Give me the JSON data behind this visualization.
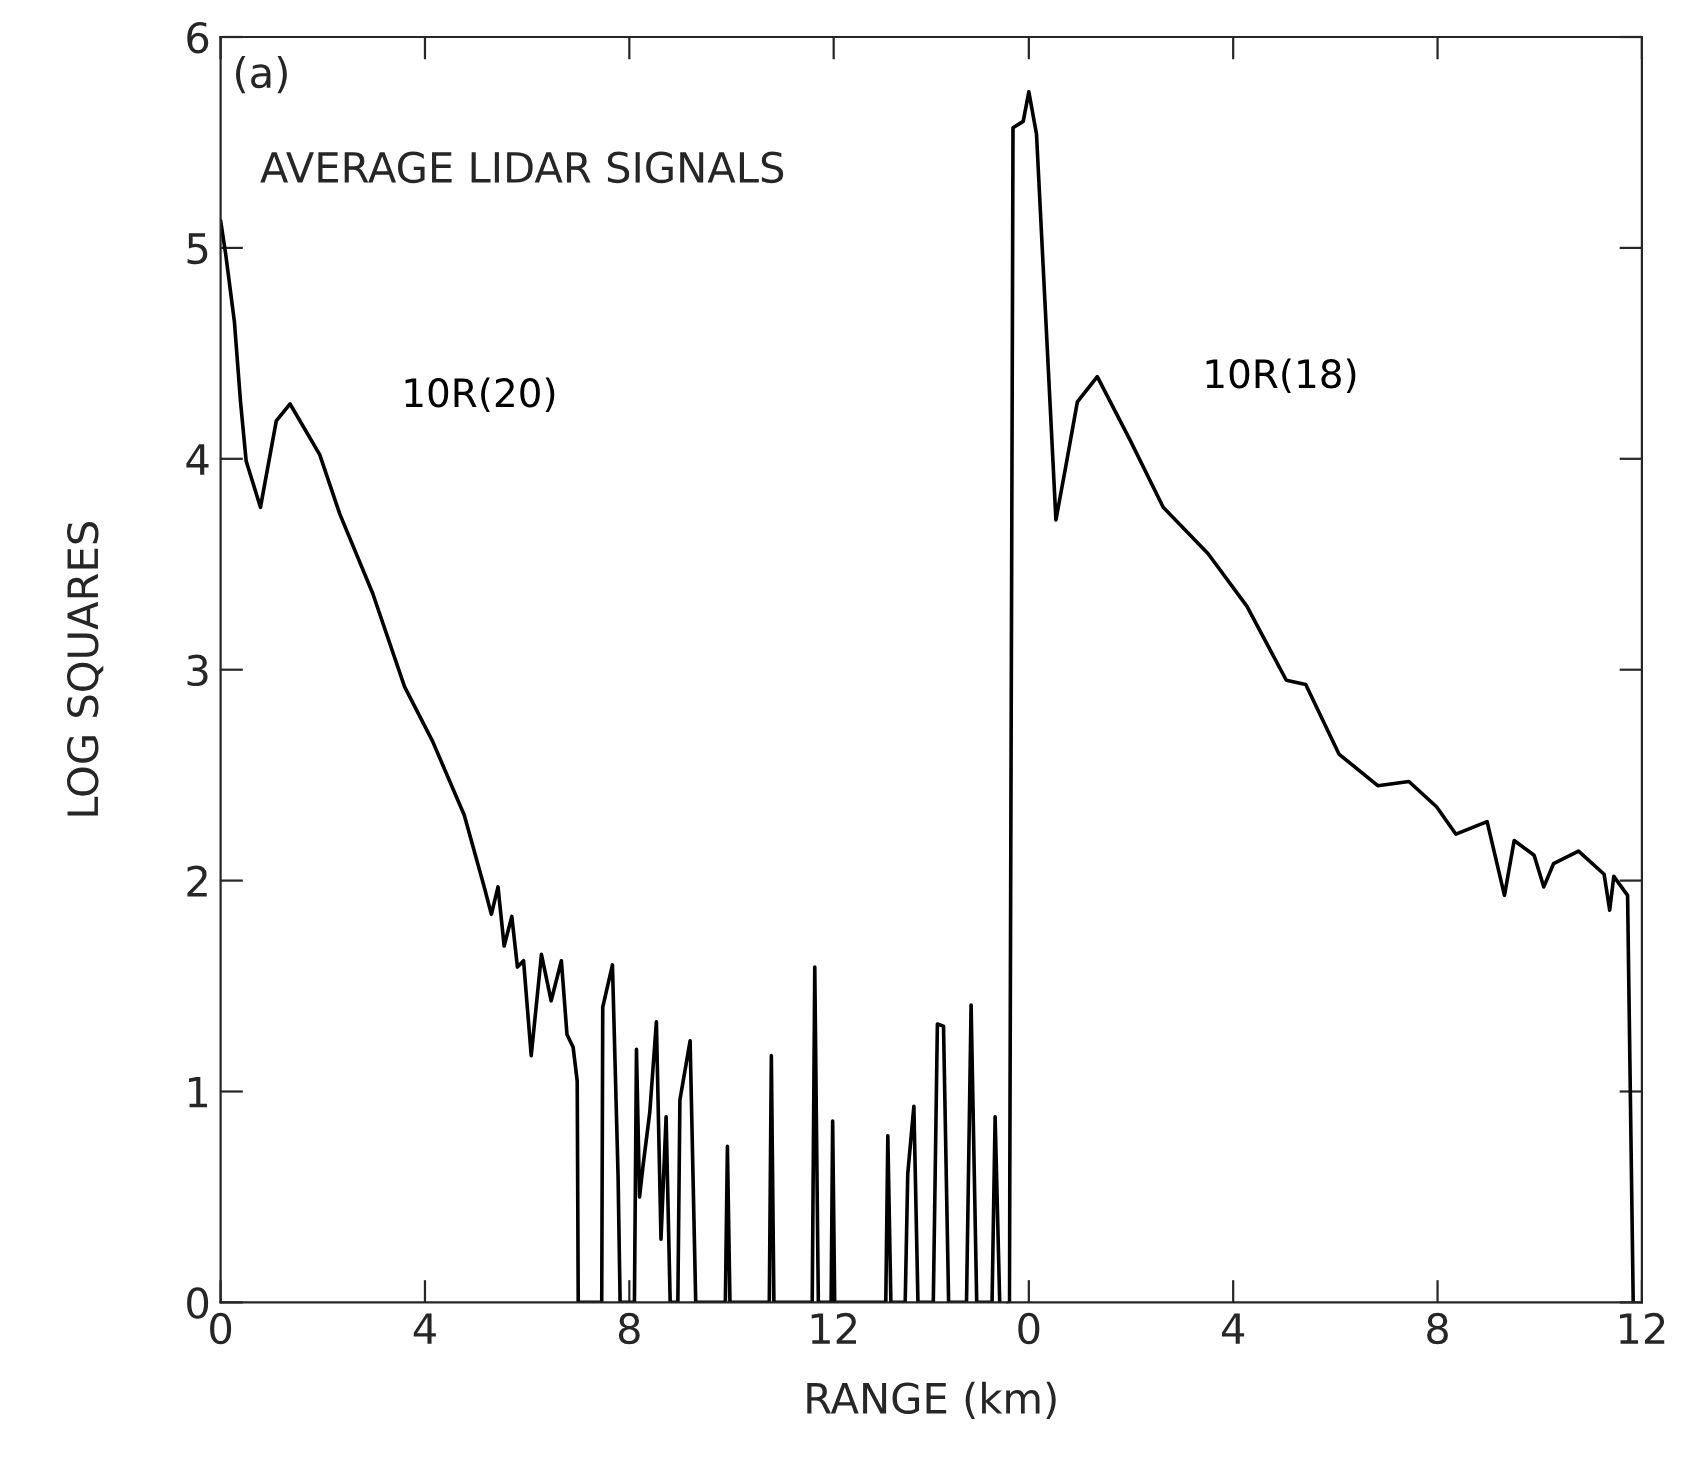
{
  "chart_data": [
    {
      "type": "line",
      "xlabel": "RANGE (km)",
      "ylabel": "LOG SQUARES",
      "annotations": [
        "(a)",
        "AVERAGE LIDAR SIGNALS"
      ],
      "xlim": [
        0,
        15.4
      ],
      "xticks": [
        0,
        4,
        8,
        12
      ],
      "ylim": [
        0,
        6
      ],
      "yticks": [
        0,
        1,
        2,
        3,
        4,
        5,
        6
      ],
      "grid": false,
      "legend": false,
      "marker": "none",
      "line_style": "solid",
      "series": [
        {
          "name": "10R(20)",
          "color": "#000000",
          "x": [
            0,
            0.1,
            0.27,
            0.39,
            0.5,
            0.78,
            1.09,
            1.36,
            1.94,
            2.33,
            2.98,
            3.6,
            4.15,
            4.77,
            5.16,
            5.3,
            5.43,
            5.55,
            5.7,
            5.81,
            5.93,
            6.08,
            6.28,
            6.47,
            6.67,
            6.78,
            6.9,
            6.98,
            7.0,
            7.46,
            7.48,
            7.67,
            7.78,
            7.82,
            8.1,
            8.14,
            8.2,
            8.27,
            8.4,
            8.53,
            8.62,
            8.72,
            8.8,
            8.95,
            8.99,
            9.19,
            9.3,
            9.88,
            9.92,
            9.97,
            10.74,
            10.78,
            10.83,
            11.58,
            11.63,
            11.7,
            11.95,
            11.98,
            12.02,
            13.02,
            13.06,
            13.12,
            13.4,
            13.45,
            13.57,
            13.65,
            13.95,
            14.03,
            14.15,
            14.25,
            14.6,
            14.69,
            14.8,
            15.1,
            15.16,
            15.25
          ],
          "values": [
            5.13,
            4.97,
            4.65,
            4.27,
            3.99,
            3.77,
            4.18,
            4.26,
            4.02,
            3.74,
            3.36,
            2.92,
            2.66,
            2.31,
            1.97,
            1.84,
            1.97,
            1.69,
            1.83,
            1.59,
            1.62,
            1.17,
            1.65,
            1.43,
            1.62,
            1.27,
            1.21,
            1.05,
            0,
            0,
            1.4,
            1.6,
            0.6,
            0,
            0,
            1.2,
            0.5,
            0.65,
            0.9,
            1.33,
            0.3,
            0.88,
            0,
            0,
            0.96,
            1.24,
            0,
            0,
            0.74,
            0,
            0,
            1.17,
            0,
            0,
            1.59,
            0,
            0,
            0.86,
            0,
            0,
            0.79,
            0,
            0,
            0.61,
            0.93,
            0,
            0,
            1.32,
            1.31,
            0,
            0,
            1.41,
            0,
            0,
            0.88,
            0
          ]
        }
      ]
    },
    {
      "type": "line",
      "xlim": [
        -0.42,
        12
      ],
      "xticks": [
        0,
        4,
        8,
        12
      ],
      "ylim": [
        0,
        6
      ],
      "yticks": [
        0,
        1,
        2,
        3,
        4,
        5,
        6
      ],
      "tick_labels": "x",
      "grid": false,
      "legend": false,
      "marker": "none",
      "line_style": "solid",
      "series": [
        {
          "name": "10R(18)",
          "color": "#000000",
          "x": [
            -0.38,
            -0.31,
            -0.11,
            0,
            0.15,
            0.53,
            0.72,
            0.95,
            1.34,
            1.98,
            2.63,
            3.51,
            4.27,
            5.04,
            5.42,
            6.07,
            6.83,
            7.44,
            7.98,
            8.36,
            8.97,
            9.31,
            9.5,
            9.89,
            10.08,
            10.27,
            10.76,
            11.26,
            11.37,
            11.45,
            11.72,
            11.83
          ],
          "values": [
            0,
            5.57,
            5.6,
            5.74,
            5.54,
            3.71,
            3.96,
            4.27,
            4.39,
            4.09,
            3.77,
            3.55,
            3.3,
            2.95,
            2.93,
            2.6,
            2.45,
            2.47,
            2.35,
            2.22,
            2.28,
            1.93,
            2.19,
            2.12,
            1.97,
            2.08,
            2.14,
            2.03,
            1.86,
            2.02,
            1.93,
            0
          ]
        }
      ]
    }
  ]
}
